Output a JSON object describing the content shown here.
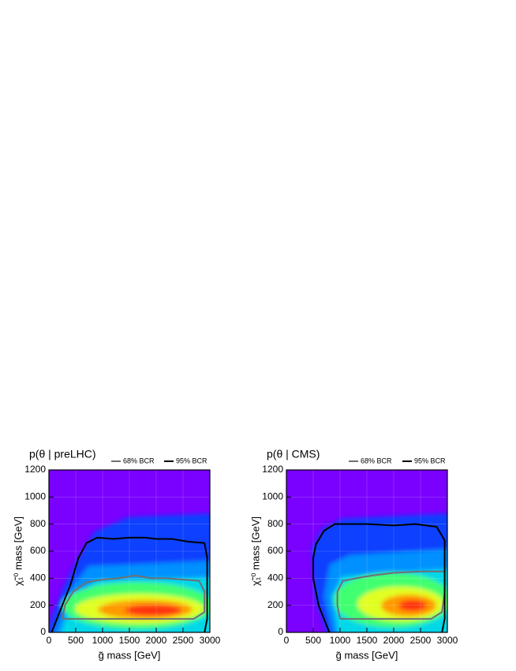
{
  "chart_data": [
    {
      "type": "contour",
      "title": "p(θ | preLHC)",
      "x_label": "g̃ mass [GeV]",
      "y_label": "χ̃₁⁰ mass [GeV]",
      "xlim": [
        0,
        3000
      ],
      "ylim": [
        0,
        1200
      ],
      "xticks": [
        0,
        500,
        1000,
        1500,
        2000,
        2500,
        3000
      ],
      "yticks": [
        0,
        200,
        400,
        600,
        800,
        1000,
        1200
      ],
      "grid": true,
      "series": [
        {
          "name": "68% BCR",
          "color": "#707070",
          "x": [
            250,
            300,
            450,
            700,
            1000,
            1300,
            1600,
            1900,
            2200,
            2500,
            2800,
            2900,
            2900,
            2700,
            1500,
            250
          ],
          "values": [
            100,
            200,
            300,
            370,
            390,
            400,
            420,
            400,
            400,
            390,
            380,
            300,
            150,
            100,
            100,
            100
          ]
        },
        {
          "name": "95% BCR",
          "color": "#000000",
          "x": [
            50,
            200,
            400,
            550,
            700,
            900,
            1200,
            1500,
            1800,
            2000,
            2300,
            2600,
            2900,
            2950,
            2950,
            2950,
            2900
          ],
          "values": [
            0,
            150,
            350,
            550,
            660,
            700,
            690,
            700,
            700,
            690,
            690,
            670,
            660,
            550,
            300,
            100,
            0
          ]
        }
      ]
    },
    {
      "type": "contour",
      "title": "p(θ | CMS)",
      "x_label": "g̃ mass [GeV]",
      "y_label": "χ̃₁⁰ mass [GeV]",
      "xlim": [
        0,
        3000
      ],
      "ylim": [
        0,
        1200
      ],
      "xticks": [
        0,
        500,
        1000,
        1500,
        2000,
        2500,
        3000
      ],
      "yticks": [
        0,
        200,
        400,
        600,
        800,
        1000,
        1200
      ],
      "grid": true,
      "series": [
        {
          "name": "68% BCR",
          "color": "#707070",
          "x": [
            1000,
            950,
            950,
            1050,
            1300,
            1600,
            2000,
            2500,
            2950,
            2950,
            2900,
            2700,
            1000
          ],
          "values": [
            100,
            200,
            300,
            380,
            400,
            420,
            440,
            450,
            450,
            300,
            150,
            100,
            100
          ]
        },
        {
          "name": "95% BCR",
          "color": "#000000",
          "x": [
            800,
            600,
            500,
            500,
            550,
            700,
            900,
            1500,
            2000,
            2400,
            2800,
            2950,
            2950,
            2950,
            2900
          ],
          "values": [
            0,
            200,
            400,
            550,
            650,
            750,
            800,
            800,
            790,
            800,
            780,
            680,
            400,
            100,
            0
          ]
        }
      ]
    }
  ]
}
